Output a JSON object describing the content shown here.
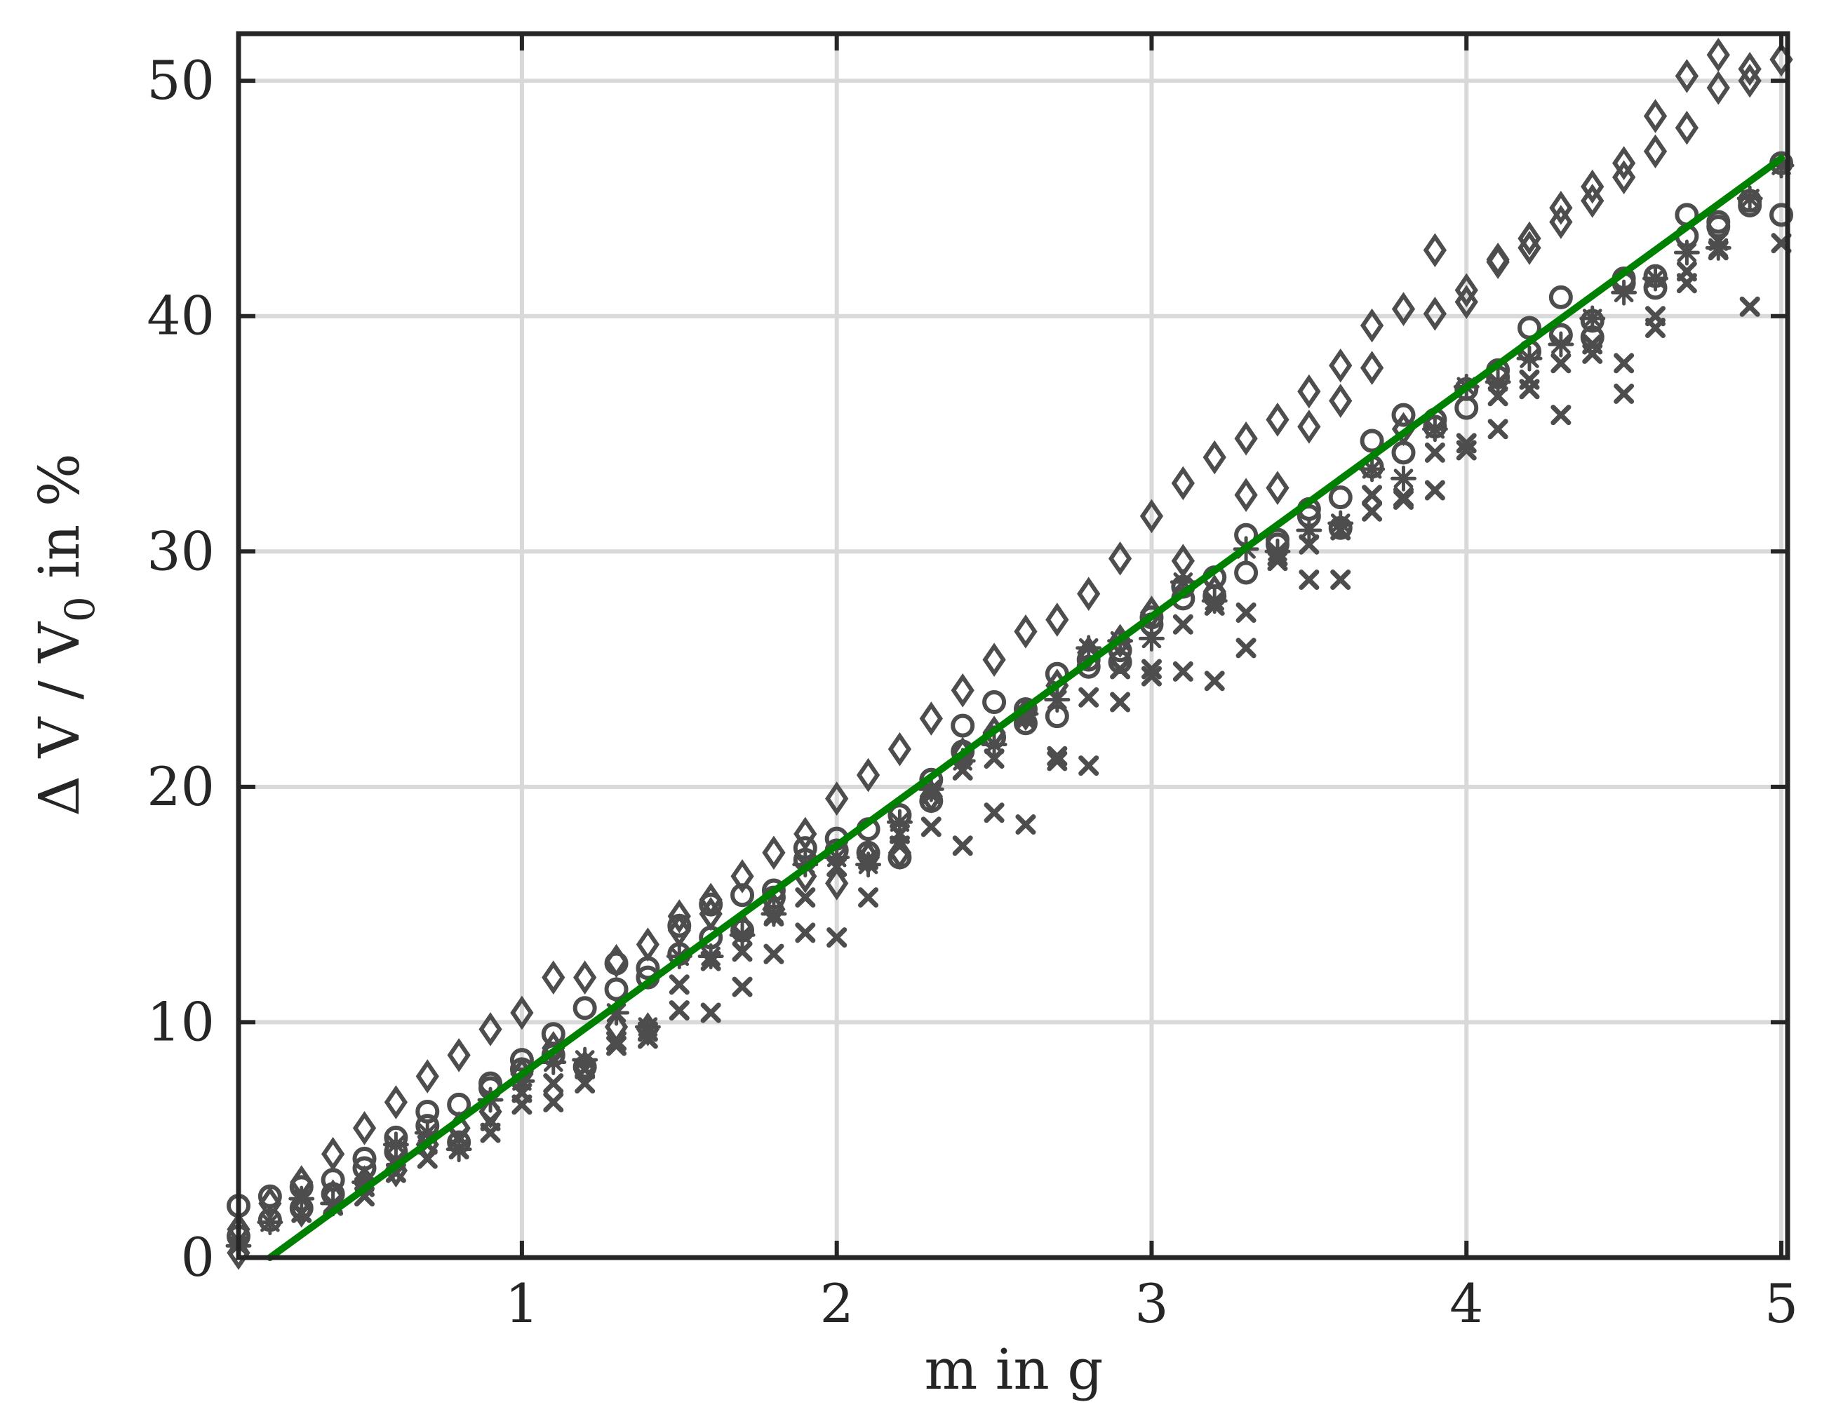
{
  "chart_data": {
    "type": "scatter",
    "title": "",
    "xlabel": "m in g",
    "ylabel_parts": {
      "main": "Δ V / V",
      "subscript": "0",
      "suffix": " in %"
    },
    "xlim": [
      0.1,
      5.02
    ],
    "ylim": [
      0,
      52
    ],
    "x_ticks": [
      1,
      2,
      3,
      4,
      5
    ],
    "y_ticks": [
      0,
      10,
      20,
      30,
      40,
      50
    ],
    "x_tick_labels": [
      "1",
      "2",
      "3",
      "4",
      "5"
    ],
    "y_tick_labels": [
      "0",
      "10",
      "20",
      "30",
      "40",
      "50"
    ],
    "grid": true,
    "colors": {
      "markers": "#4d4d4d",
      "fit_line": "#008000",
      "grid": "#d9d9d9",
      "axes": "#262626"
    },
    "series": [
      {
        "marker": "diamond",
        "x": [
          0.1,
          0.1,
          0.2,
          0.3,
          0.4,
          0.5,
          0.6,
          0.7,
          0.8,
          0.9,
          1.0,
          1.1,
          1.2,
          1.3,
          1.4,
          1.5,
          1.6,
          1.7,
          1.8,
          1.9,
          2.0,
          2.1,
          2.2,
          2.3,
          2.4,
          2.5,
          2.6,
          2.7,
          2.8,
          2.9,
          3.0,
          3.1,
          3.2,
          3.3,
          3.4,
          3.5,
          3.6,
          3.7,
          3.8,
          3.9,
          4.0,
          4.1,
          4.2,
          4.3,
          4.4,
          4.5,
          4.6,
          4.7,
          4.8,
          4.9,
          5.0
        ],
        "y": [
          0.2,
          1.2,
          2.3,
          3.2,
          4.4,
          5.5,
          6.6,
          7.7,
          8.6,
          9.7,
          10.4,
          11.9,
          11.9,
          12.6,
          13.3,
          14.5,
          15.2,
          16.2,
          17.2,
          18.0,
          19.5,
          20.5,
          21.6,
          22.9,
          24.1,
          25.4,
          26.6,
          27.1,
          28.2,
          29.7,
          31.5,
          32.9,
          34.0,
          34.8,
          35.6,
          36.8,
          37.9,
          39.6,
          40.3,
          42.8,
          41.1,
          42.4,
          43.3,
          44.6,
          45.5,
          46.5,
          48.5,
          50.2,
          51.1,
          50.5,
          50.9
        ]
      },
      {
        "marker": "diamond",
        "x": [
          0.3,
          0.4,
          0.5,
          0.6,
          0.7,
          0.8,
          0.9,
          1.0,
          1.1,
          1.2,
          1.3,
          1.4,
          1.5,
          1.6,
          1.7,
          1.8,
          1.9,
          2.0,
          2.1,
          2.2,
          2.3,
          2.4,
          2.5,
          2.6,
          2.7,
          2.8,
          2.9,
          3.0,
          3.1,
          3.2,
          3.3,
          3.4,
          3.5,
          3.6,
          3.7,
          3.8,
          3.9,
          4.0,
          4.1,
          4.2,
          4.3,
          4.4,
          4.5,
          4.6,
          4.7,
          4.8,
          4.9
        ],
        "y": [
          2.0,
          2.6,
          3.2,
          3.7,
          4.8,
          5.5,
          6.2,
          7.8,
          8.9,
          8.1,
          9.8,
          9.7,
          13.9,
          14.6,
          14.0,
          14.8,
          16.2,
          15.9,
          17.0,
          17.2,
          19.6,
          21.4,
          22.3,
          23.1,
          24.3,
          25.7,
          26.2,
          27.4,
          29.6,
          28.3,
          32.4,
          32.7,
          35.3,
          36.4,
          37.8,
          35.2,
          40.1,
          40.6,
          42.3,
          42.9,
          44.0,
          44.9,
          45.9,
          47.0,
          48.0,
          49.7,
          50.0
        ]
      },
      {
        "marker": "circle",
        "x": [
          0.1,
          0.2,
          0.3,
          0.4,
          0.5,
          0.6,
          0.7,
          0.8,
          0.9,
          1.0,
          1.1,
          1.2,
          1.3,
          1.4,
          1.5,
          1.6,
          1.7,
          1.8,
          1.9,
          2.0,
          2.1,
          2.2,
          2.3,
          2.4,
          2.5,
          2.6,
          2.7,
          2.8,
          2.9,
          3.0,
          3.1,
          3.2,
          3.3,
          3.4,
          3.5,
          3.6,
          3.7,
          3.8,
          3.9,
          4.0,
          4.1,
          4.2,
          4.3,
          4.4,
          4.5,
          4.6,
          4.7,
          4.8,
          4.9,
          5.0
        ],
        "y": [
          2.2,
          2.6,
          3.0,
          3.3,
          4.2,
          5.1,
          6.2,
          6.5,
          7.2,
          8.4,
          9.5,
          10.6,
          12.5,
          12.3,
          14.1,
          15.0,
          15.4,
          15.6,
          17.4,
          17.8,
          18.2,
          18.8,
          20.3,
          22.6,
          23.6,
          23.3,
          23.0,
          25.4,
          25.8,
          27.2,
          28.5,
          28.1,
          30.7,
          30.5,
          31.8,
          32.3,
          34.7,
          35.8,
          35.6,
          36.1,
          37.7,
          39.5,
          40.8,
          39.8,
          41.6,
          41.7,
          44.3,
          44.0,
          44.7,
          46.5
        ]
      },
      {
        "marker": "circle",
        "x": [
          0.1,
          0.2,
          0.3,
          0.4,
          0.5,
          0.6,
          0.7,
          0.8,
          0.9,
          1.0,
          1.1,
          1.2,
          1.3,
          1.4,
          1.5,
          1.6,
          1.7,
          1.8,
          1.9,
          2.0,
          2.1,
          2.2,
          2.3,
          2.4,
          2.5,
          2.6,
          2.7,
          2.8,
          2.9,
          3.0,
          3.1,
          3.2,
          3.3,
          3.4,
          3.5,
          3.6,
          3.7,
          3.8,
          3.9,
          4.0,
          4.1,
          4.2,
          4.3,
          4.4,
          4.5,
          4.6,
          4.7,
          4.8,
          4.9,
          5.0
        ],
        "y": [
          0.9,
          1.6,
          2.1,
          2.7,
          3.8,
          4.5,
          5.6,
          4.9,
          7.4,
          8.0,
          8.6,
          8.1,
          11.4,
          11.9,
          12.9,
          13.6,
          13.9,
          15.3,
          16.9,
          17.3,
          17.2,
          17.0,
          19.4,
          21.5,
          22.1,
          22.7,
          24.8,
          25.1,
          25.3,
          26.9,
          28.0,
          28.9,
          29.1,
          30.3,
          31.5,
          31.0,
          33.6,
          34.2,
          35.3,
          36.9,
          37.4,
          38.5,
          39.2,
          39.1,
          41.4,
          41.2,
          43.4,
          43.8,
          44.9,
          44.3
        ]
      },
      {
        "marker": "star",
        "x": [
          0.1,
          0.2,
          0.3,
          0.4,
          0.5,
          0.6,
          0.7,
          0.8,
          0.9,
          1.0,
          1.1,
          1.2,
          1.3,
          1.4,
          1.5,
          1.6,
          1.7,
          1.8,
          1.9,
          2.0,
          2.1,
          2.2,
          2.3,
          2.4,
          2.5,
          2.6,
          2.7,
          2.8,
          2.9,
          3.0,
          3.1,
          3.2,
          3.3,
          3.4,
          3.5,
          3.6,
          3.7,
          3.8,
          3.9,
          4.0,
          4.1,
          4.2,
          4.3,
          4.4,
          4.5,
          4.6,
          4.7,
          4.8,
          4.9,
          5.0
        ],
        "y": [
          0.5,
          1.5,
          2.5,
          2.3,
          3.2,
          4.8,
          5.3,
          4.6,
          6.7,
          7.5,
          8.3,
          8.4,
          10.4,
          9.8,
          12.8,
          12.8,
          13.7,
          14.6,
          16.7,
          17.0,
          16.7,
          18.5,
          19.9,
          21.1,
          21.8,
          23.1,
          23.7,
          25.9,
          26.2,
          26.3,
          28.7,
          27.9,
          30.1,
          30.0,
          30.9,
          31.2,
          33.5,
          33.1,
          35.2,
          37.0,
          37.2,
          38.2,
          38.8,
          39.9,
          41.0,
          41.6,
          42.7,
          42.9,
          45.0,
          46.4
        ]
      },
      {
        "marker": "x",
        "x": [
          0.3,
          0.4,
          0.5,
          0.6,
          0.7,
          0.8,
          0.9,
          1.0,
          1.1,
          1.2,
          1.3,
          1.4,
          1.5,
          1.6,
          1.7,
          1.8,
          1.9,
          2.0,
          2.1,
          2.2,
          2.3,
          2.4,
          2.5,
          2.6,
          2.7,
          2.8,
          2.9,
          3.0,
          3.1,
          3.2,
          3.3,
          3.4,
          3.5,
          3.6,
          3.7,
          3.8,
          3.9,
          4.0,
          4.1,
          4.2,
          4.3,
          4.4,
          4.5,
          4.6,
          4.7,
          4.8,
          4.9,
          5.0
        ],
        "y": [
          1.9,
          2.2,
          2.6,
          3.6,
          4.2,
          4.6,
          5.3,
          6.5,
          6.6,
          7.4,
          9.0,
          9.3,
          10.5,
          10.4,
          11.5,
          12.9,
          13.8,
          13.6,
          15.3,
          17.5,
          18.3,
          17.5,
          18.9,
          18.4,
          21.3,
          20.9,
          23.6,
          24.7,
          24.9,
          24.5,
          25.9,
          29.8,
          28.8,
          28.8,
          31.7,
          32.2,
          32.6,
          34.3,
          35.2,
          36.9,
          35.8,
          38.8,
          36.7,
          39.5,
          41.4,
          42.8,
          40.4,
          43.1
        ]
      },
      {
        "marker": "x",
        "x": [
          0.5,
          0.6,
          0.7,
          0.8,
          0.9,
          1.0,
          1.1,
          1.2,
          1.3,
          1.4,
          1.5,
          1.6,
          1.7,
          1.8,
          1.9,
          2.0,
          2.1,
          2.2,
          2.3,
          2.4,
          2.5,
          2.6,
          2.7,
          2.8,
          2.9,
          3.0,
          3.1,
          3.2,
          3.3,
          3.4,
          3.5,
          3.6,
          3.7,
          3.8,
          3.9,
          4.0,
          4.1,
          4.2,
          4.3,
          4.4,
          4.5,
          4.6,
          4.7,
          4.8
        ],
        "y": [
          3.0,
          4.1,
          4.8,
          5.1,
          5.8,
          7.0,
          7.4,
          8.0,
          9.2,
          9.6,
          11.6,
          12.6,
          13.0,
          14.5,
          15.3,
          16.6,
          16.9,
          18.0,
          19.7,
          20.7,
          21.2,
          22.9,
          21.1,
          23.8,
          25.0,
          25.0,
          26.9,
          27.7,
          27.4,
          29.6,
          30.3,
          30.9,
          32.4,
          32.3,
          34.2,
          34.6,
          36.6,
          37.3,
          38.0,
          38.4,
          38.0,
          40.0,
          41.9,
          43.2
        ]
      }
    ],
    "fit_line": {
      "x": [
        0.2,
        5.0
      ],
      "y": [
        0.0,
        46.7
      ]
    }
  }
}
